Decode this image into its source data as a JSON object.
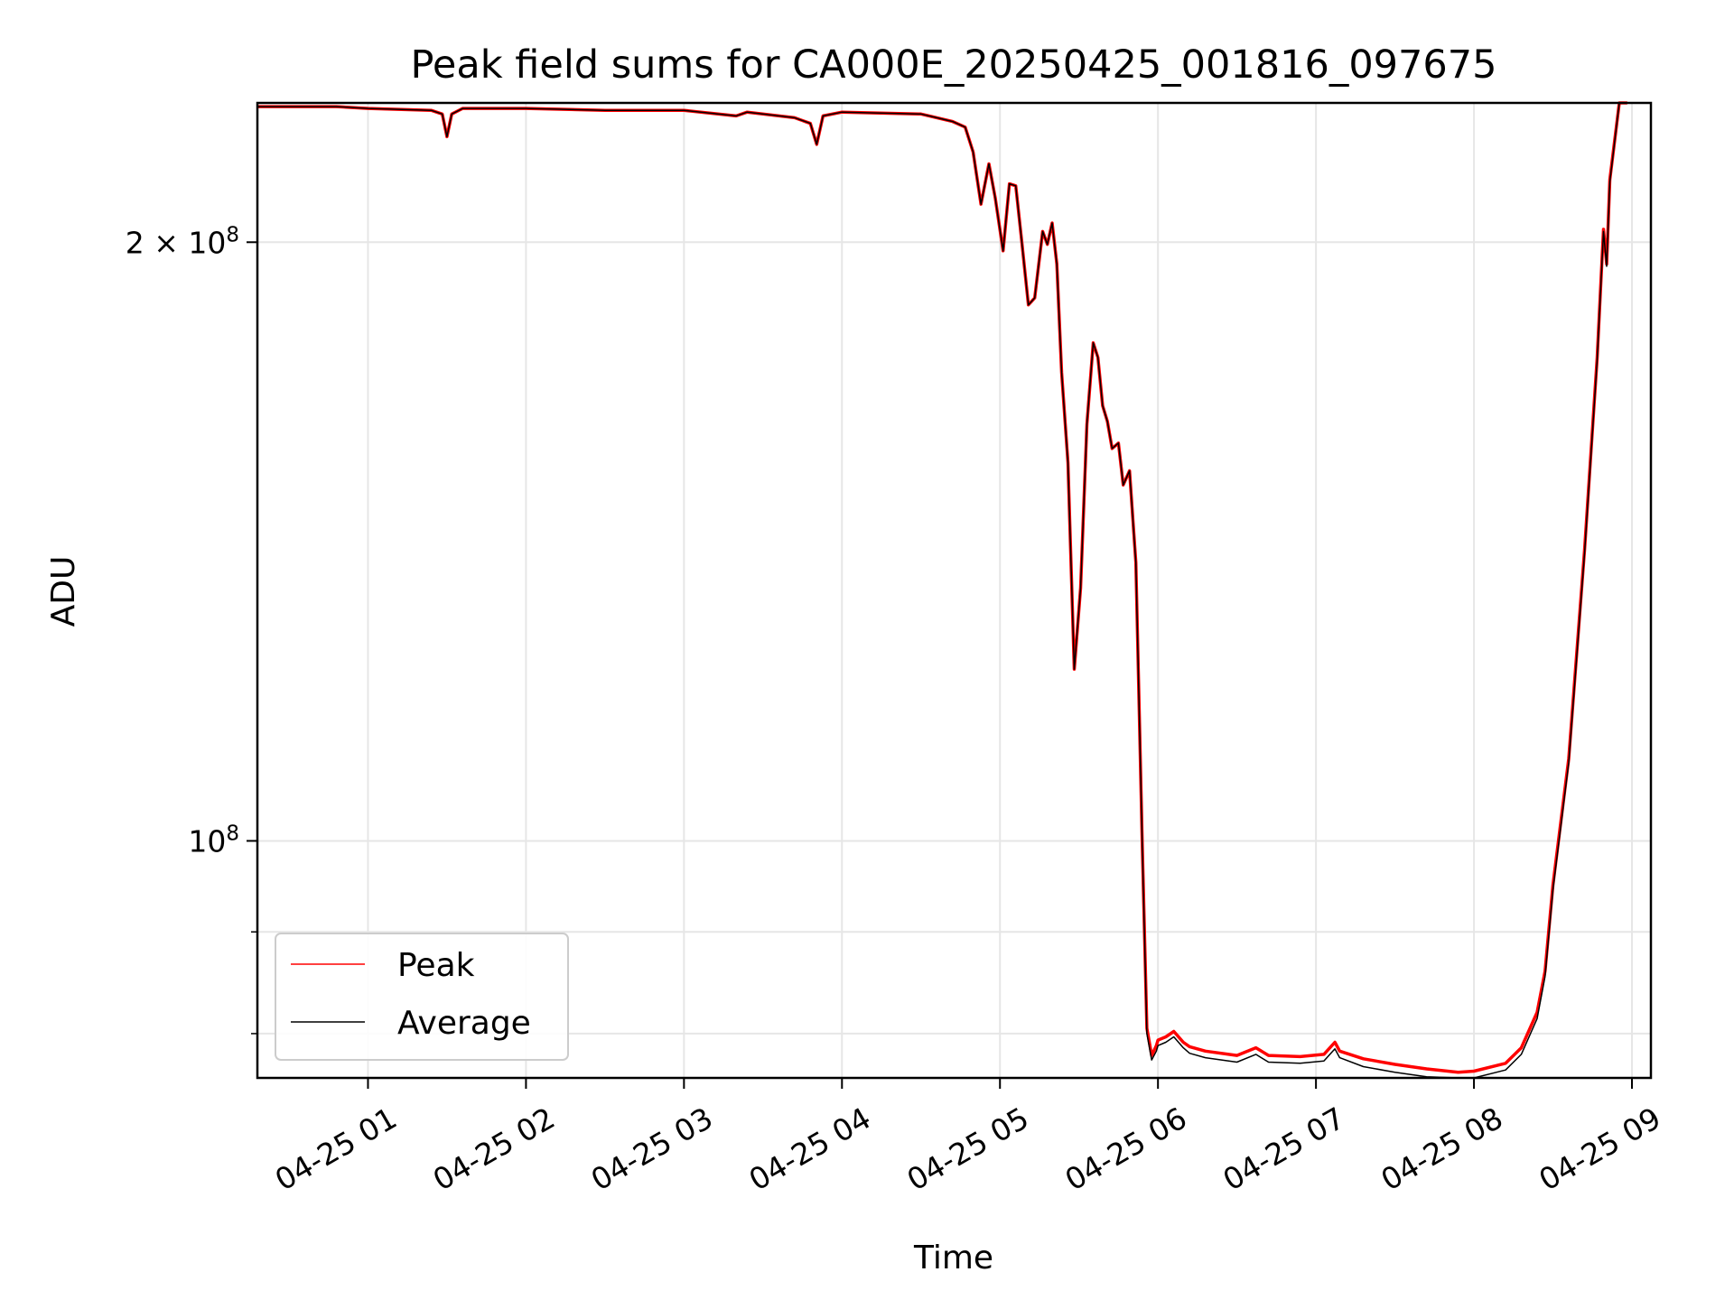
{
  "chart_data": {
    "type": "line",
    "title": "Peak field sums for CA000E_20250425_001816_097675",
    "xlabel": "Time",
    "ylabel": "ADU",
    "x_ticks": [
      "04-25 01",
      "04-25 02",
      "04-25 03",
      "04-25 04",
      "04-25 05",
      "04-25 06",
      "04-25 07",
      "04-25 08",
      "04-25 09"
    ],
    "y_ticks": [
      {
        "value": 200000000,
        "mantissa": "2",
        "times": "×",
        "base": "10",
        "exp": "8"
      },
      {
        "value": 100000000,
        "mantissa": "",
        "times": "",
        "base": "10",
        "exp": "8"
      }
    ],
    "y_scale": "log",
    "ylim": [
      76000000,
      235000000
    ],
    "xlim_hours": [
      0.3,
      9.12
    ],
    "grid": true,
    "legend_position": "lower-left",
    "legend": [
      "Peak",
      "Average"
    ],
    "colors": {
      "Peak": "#ff0000",
      "Average": "#000000"
    },
    "series": [
      {
        "name": "Peak",
        "x": [
          0.3,
          0.8,
          1.0,
          1.4,
          1.47,
          1.5,
          1.53,
          1.6,
          2.0,
          2.5,
          3.0,
          3.33,
          3.4,
          3.7,
          3.8,
          3.84,
          3.88,
          4.0,
          4.5,
          4.6,
          4.7,
          4.78,
          4.83,
          4.88,
          4.93,
          4.97,
          5.02,
          5.06,
          5.1,
          5.14,
          5.18,
          5.22,
          5.27,
          5.3,
          5.33,
          5.36,
          5.39,
          5.43,
          5.47,
          5.51,
          5.55,
          5.59,
          5.62,
          5.65,
          5.68,
          5.71,
          5.75,
          5.78,
          5.82,
          5.86,
          5.9,
          5.93,
          5.96,
          5.99,
          6.0,
          6.05,
          6.1,
          6.16,
          6.2,
          6.3,
          6.5,
          6.62,
          6.7,
          6.9,
          7.05,
          7.12,
          7.15,
          7.3,
          7.5,
          7.7,
          7.9,
          8.0,
          8.2,
          8.3,
          8.4,
          8.45,
          8.5,
          8.6,
          8.7,
          8.78,
          8.82,
          8.84,
          8.86,
          8.92,
          8.97
        ],
        "values": [
          234000000,
          234000000,
          233500000,
          233000000,
          232000000,
          226000000,
          232000000,
          233500000,
          233500000,
          233000000,
          233000000,
          231500000,
          232500000,
          231000000,
          229500000,
          224000000,
          231500000,
          232500000,
          232000000,
          231000000,
          230000000,
          228500000,
          222000000,
          209000000,
          219000000,
          210500000,
          198000000,
          214000000,
          213500000,
          199500000,
          186000000,
          187500000,
          202500000,
          199500000,
          204500000,
          195000000,
          172000000,
          155000000,
          122000000,
          134000000,
          162000000,
          178000000,
          175000000,
          165500000,
          162500000,
          157500000,
          158500000,
          151000000,
          153500000,
          138000000,
          100000000,
          80500000,
          78000000,
          78900000,
          79400000,
          79700000,
          80200000,
          79200000,
          78800000,
          78400000,
          78000000,
          78700000,
          78000000,
          77900000,
          78100000,
          79200000,
          78400000,
          77700000,
          77200000,
          76800000,
          76500000,
          76600000,
          77300000,
          78700000,
          82000000,
          86000000,
          95000000,
          110000000,
          140000000,
          175000000,
          203000000,
          195000000,
          215000000,
          235000000,
          235000000
        ]
      },
      {
        "name": "Average",
        "x": [
          0.3,
          0.8,
          1.0,
          1.4,
          1.47,
          1.5,
          1.53,
          1.6,
          2.0,
          2.5,
          3.0,
          3.33,
          3.4,
          3.7,
          3.8,
          3.84,
          3.88,
          4.0,
          4.5,
          4.6,
          4.7,
          4.78,
          4.83,
          4.88,
          4.93,
          4.97,
          5.02,
          5.06,
          5.1,
          5.14,
          5.18,
          5.22,
          5.27,
          5.3,
          5.33,
          5.36,
          5.39,
          5.43,
          5.47,
          5.51,
          5.55,
          5.59,
          5.62,
          5.65,
          5.68,
          5.71,
          5.75,
          5.78,
          5.82,
          5.86,
          5.9,
          5.93,
          5.96,
          5.99,
          6.0,
          6.05,
          6.1,
          6.16,
          6.2,
          6.3,
          6.5,
          6.62,
          6.7,
          6.9,
          7.05,
          7.12,
          7.15,
          7.3,
          7.5,
          7.7,
          7.9,
          8.0,
          8.2,
          8.3,
          8.4,
          8.45,
          8.5,
          8.6,
          8.7,
          8.78,
          8.82,
          8.84,
          8.86,
          8.92,
          8.97
        ],
        "values": [
          234000000,
          234000000,
          233500000,
          233000000,
          232000000,
          226000000,
          232000000,
          233500000,
          233500000,
          233000000,
          233000000,
          231500000,
          232500000,
          231000000,
          229500000,
          224000000,
          231500000,
          232500000,
          232000000,
          231000000,
          230000000,
          228500000,
          222000000,
          209000000,
          219000000,
          210500000,
          198000000,
          214000000,
          213500000,
          199500000,
          186000000,
          187500000,
          202500000,
          199500000,
          204500000,
          195000000,
          172000000,
          155000000,
          122000000,
          134000000,
          162000000,
          178000000,
          175000000,
          165500000,
          162500000,
          157500000,
          158500000,
          151000000,
          153500000,
          138000000,
          100000000,
          80000000,
          77600000,
          78400000,
          78900000,
          79200000,
          79700000,
          78700000,
          78200000,
          77800000,
          77400000,
          78100000,
          77400000,
          77300000,
          77500000,
          78600000,
          77800000,
          77000000,
          76500000,
          76100000,
          75900000,
          76000000,
          76700000,
          78100000,
          81400000,
          85500000,
          94500000,
          109500000,
          139500000,
          174500000,
          202500000,
          194500000,
          214500000,
          235000000,
          235000000
        ]
      }
    ]
  }
}
